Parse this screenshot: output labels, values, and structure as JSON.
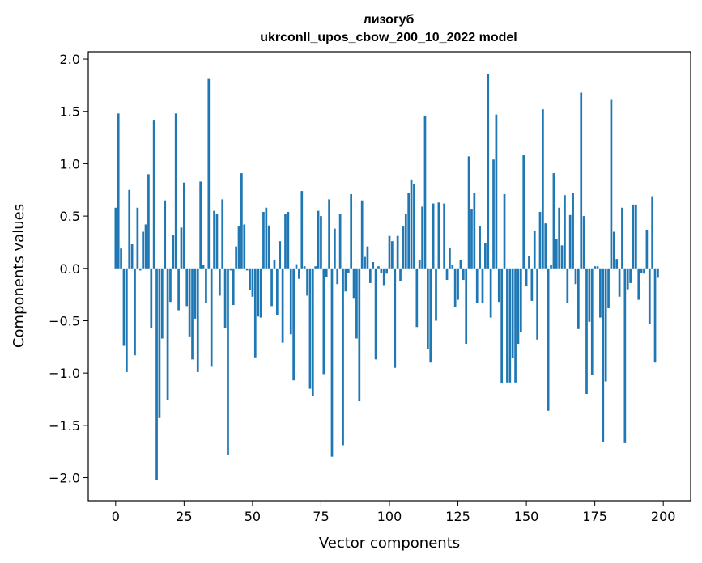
{
  "chart_data": {
    "type": "bar",
    "title_line1": "лизогуб",
    "title_line2": "ukrconll_upos_cbow_200_10_2022 model",
    "xlabel": "Vector components",
    "ylabel": "Components values",
    "xlim": [
      -10,
      210
    ],
    "ylim": [
      -2.22,
      2.07
    ],
    "xticks": [
      0,
      25,
      50,
      75,
      100,
      125,
      150,
      175,
      200
    ],
    "yticks": [
      -2.0,
      -1.5,
      -1.0,
      -0.5,
      0.0,
      0.5,
      1.0,
      1.5,
      2.0
    ],
    "ytick_labels": [
      "−2.0",
      "−1.5",
      "−1.0",
      "−0.5",
      "0.0",
      "0.5",
      "1.0",
      "1.5",
      "2.0"
    ],
    "bar_color": "#1f77b4",
    "values": [
      0.58,
      1.48,
      0.19,
      -0.74,
      -0.99,
      0.75,
      0.23,
      -0.83,
      0.58,
      -0.02,
      0.35,
      0.42,
      0.9,
      -0.57,
      1.42,
      -2.02,
      -1.43,
      -0.67,
      0.65,
      -1.26,
      -0.32,
      0.32,
      1.48,
      -0.4,
      0.39,
      0.82,
      -0.36,
      -0.65,
      -0.87,
      -0.48,
      -0.99,
      0.83,
      0.03,
      -0.33,
      1.81,
      -0.94,
      0.55,
      0.52,
      -0.26,
      0.66,
      -0.57,
      -1.78,
      -0.02,
      -0.35,
      0.21,
      0.4,
      0.91,
      0.42,
      -0.02,
      -0.21,
      -0.27,
      -0.85,
      -0.46,
      -0.47,
      0.54,
      0.58,
      0.41,
      -0.36,
      0.08,
      -0.45,
      0.26,
      -0.71,
      0.52,
      0.54,
      -0.63,
      -1.07,
      0.04,
      -0.1,
      0.74,
      0.02,
      -0.26,
      -1.15,
      -1.22,
      0.02,
      0.55,
      0.5,
      -1.01,
      -0.08,
      0.66,
      -1.8,
      0.38,
      -0.15,
      0.52,
      -1.69,
      -0.22,
      -0.04,
      0.71,
      -0.29,
      -0.67,
      -1.27,
      0.65,
      0.11,
      0.21,
      -0.14,
      0.06,
      -0.87,
      0.02,
      -0.04,
      -0.16,
      -0.05,
      0.31,
      0.26,
      -0.95,
      0.31,
      -0.12,
      0.4,
      0.52,
      0.72,
      0.85,
      0.81,
      -0.56,
      0.08,
      0.59,
      1.46,
      -0.77,
      -0.9,
      0.62,
      -0.5,
      0.63,
      0.0,
      0.62,
      -0.11,
      0.2,
      0.03,
      -0.37,
      -0.3,
      0.08,
      -0.11,
      -0.72,
      1.07,
      0.57,
      0.72,
      -0.33,
      0.4,
      -0.33,
      0.24,
      1.86,
      -0.47,
      1.04,
      1.47,
      -0.32,
      -1.1,
      0.71,
      -1.09,
      -1.09,
      -0.86,
      -1.09,
      -0.72,
      -0.61,
      1.08,
      -0.17,
      0.12,
      -0.31,
      0.36,
      -0.68,
      0.54,
      1.52,
      0.43,
      -1.36,
      0.03,
      0.91,
      0.28,
      0.58,
      0.22,
      0.7,
      -0.33,
      0.51,
      0.72,
      -0.15,
      -0.58,
      1.68,
      0.5,
      -1.2,
      -0.51,
      -1.02,
      0.02,
      0.02,
      -0.47,
      -1.66,
      -1.08,
      -0.38,
      1.61,
      0.35,
      0.09,
      -0.27,
      0.58,
      -1.67,
      -0.2,
      -0.14,
      0.61,
      0.61,
      -0.3,
      -0.04,
      -0.05,
      0.37,
      -0.53,
      0.69,
      -0.9,
      -0.09
    ]
  }
}
